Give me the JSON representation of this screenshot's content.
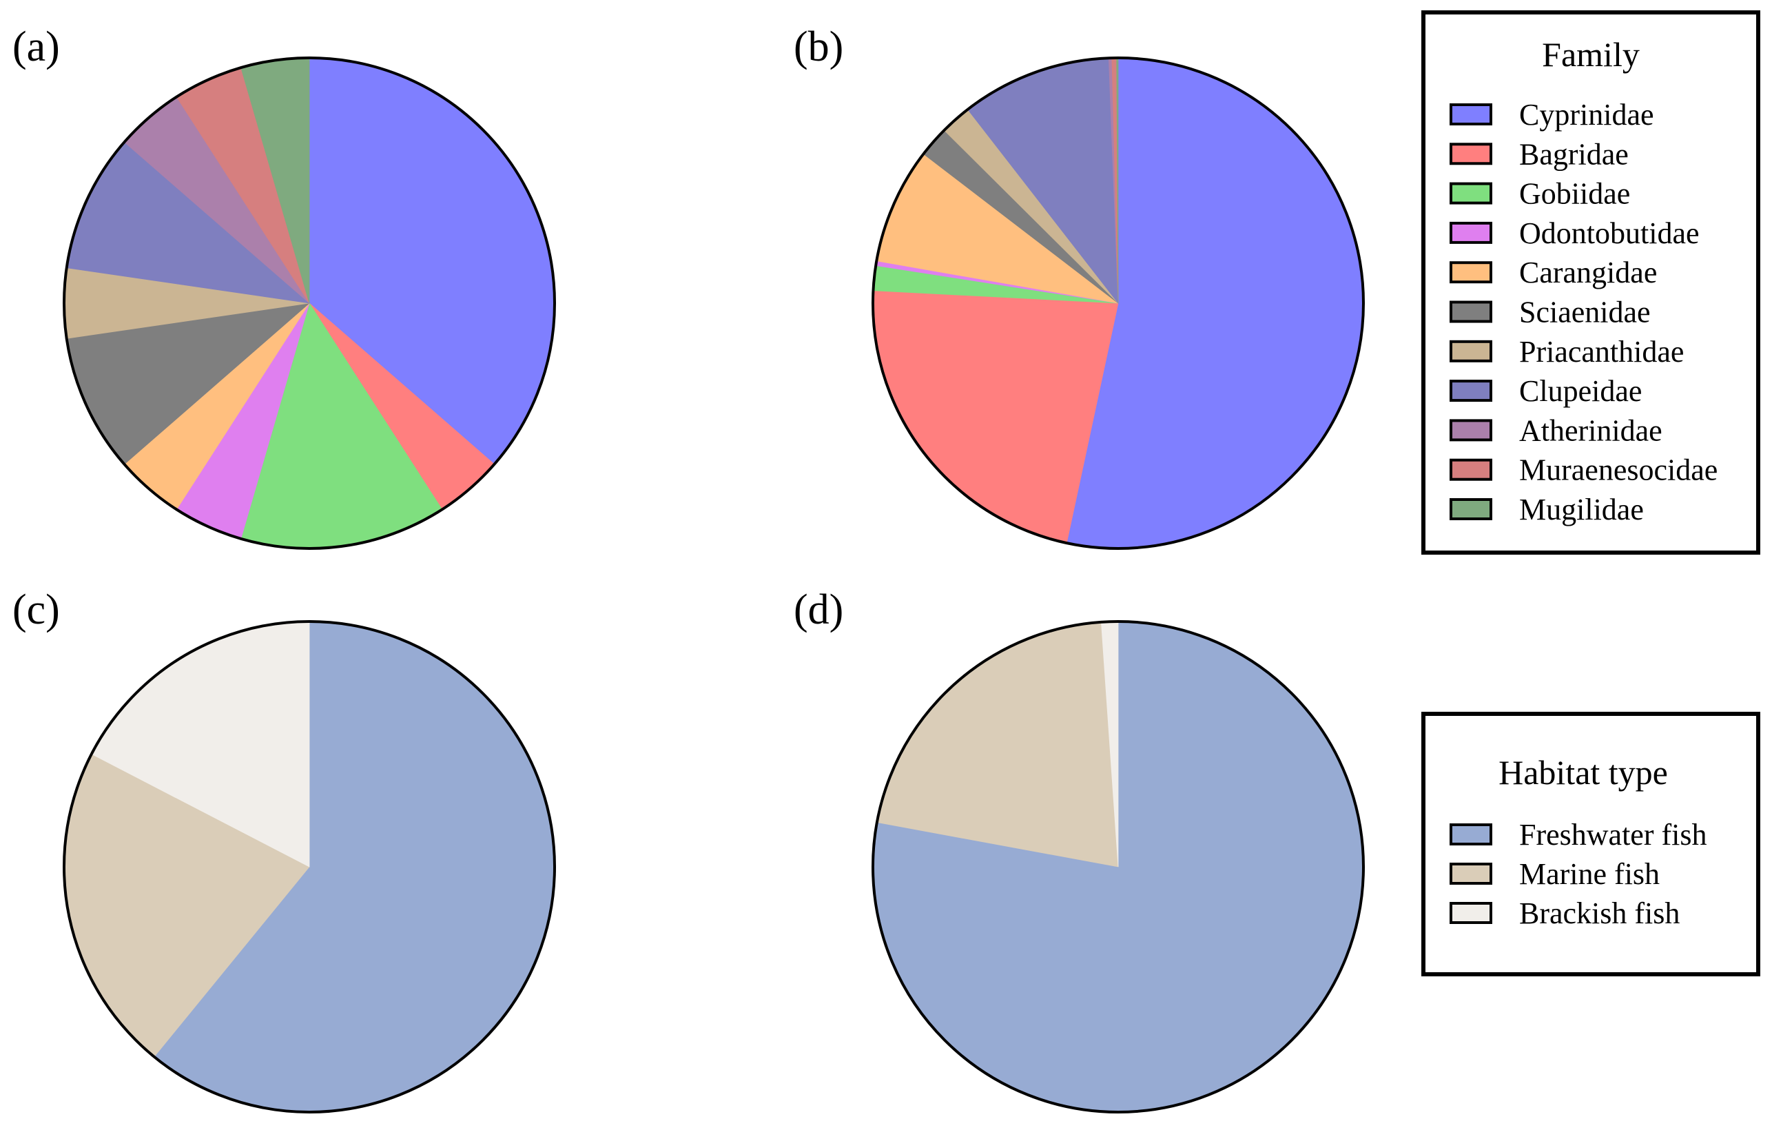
{
  "panels": [
    {
      "label": "(a)"
    },
    {
      "label": "(b)"
    },
    {
      "label": "(c)"
    },
    {
      "label": "(d)"
    }
  ],
  "legends": {
    "family": {
      "title": "Family",
      "entries": [
        {
          "name": "Cyprinidae",
          "color": "#7f7fff"
        },
        {
          "name": "Bagridae",
          "color": "#ff7f7f"
        },
        {
          "name": "Gobiidae",
          "color": "#7fdf7f"
        },
        {
          "name": "Odontobutidae",
          "color": "#df7fef"
        },
        {
          "name": "Carangidae",
          "color": "#ffbf7f"
        },
        {
          "name": "Sciaenidae",
          "color": "#7f7f7f"
        },
        {
          "name": "Priacanthidae",
          "color": "#cbb593"
        },
        {
          "name": "Clupeidae",
          "color": "#7f7fbf"
        },
        {
          "name": "Atherinidae",
          "color": "#ab80ab"
        },
        {
          "name": "Muraenesocidae",
          "color": "#d67f7f"
        },
        {
          "name": "Mugilidae",
          "color": "#7faa7f"
        }
      ]
    },
    "habitat": {
      "title": "Habitat type",
      "entries": [
        {
          "name": "Freshwater fish",
          "color": "#97abd3"
        },
        {
          "name": "Marine fish",
          "color": "#dacdb8"
        },
        {
          "name": "Brackish fish",
          "color": "#f1eeea"
        }
      ]
    }
  },
  "chart_data": [
    {
      "type": "pie",
      "panel": "(a)",
      "legend": "family",
      "categories": [
        "Cyprinidae",
        "Bagridae",
        "Gobiidae",
        "Odontobutidae",
        "Carangidae",
        "Sciaenidae",
        "Priacanthidae",
        "Clupeidae",
        "Atherinidae",
        "Muraenesocidae",
        "Mugilidae"
      ],
      "values": [
        34.8,
        4.3,
        13.0,
        4.4,
        4.3,
        8.7,
        4.4,
        8.7,
        4.3,
        4.4,
        4.3
      ]
    },
    {
      "type": "pie",
      "panel": "(b)",
      "legend": "family",
      "categories": [
        "Cyprinidae",
        "Bagridae",
        "Gobiidae",
        "Odontobutidae",
        "Carangidae",
        "Sciaenidae",
        "Priacanthidae",
        "Clupeidae",
        "Atherinidae",
        "Muraenesocidae",
        "Mugilidae"
      ],
      "values": [
        52.3,
        22.0,
        1.6,
        0.3,
        7.5,
        2.0,
        2.0,
        9.7,
        0.2,
        0.3,
        0.1
      ]
    },
    {
      "type": "pie",
      "panel": "(c)",
      "legend": "habitat",
      "categories": [
        "Freshwater fish",
        "Marine fish",
        "Brackish fish"
      ],
      "values": [
        60.9,
        21.7,
        17.4
      ]
    },
    {
      "type": "pie",
      "panel": "(d)",
      "legend": "habitat",
      "categories": [
        "Freshwater fish",
        "Marine fish",
        "Brackish fish"
      ],
      "values": [
        77.9,
        21.0,
        1.1
      ]
    }
  ]
}
